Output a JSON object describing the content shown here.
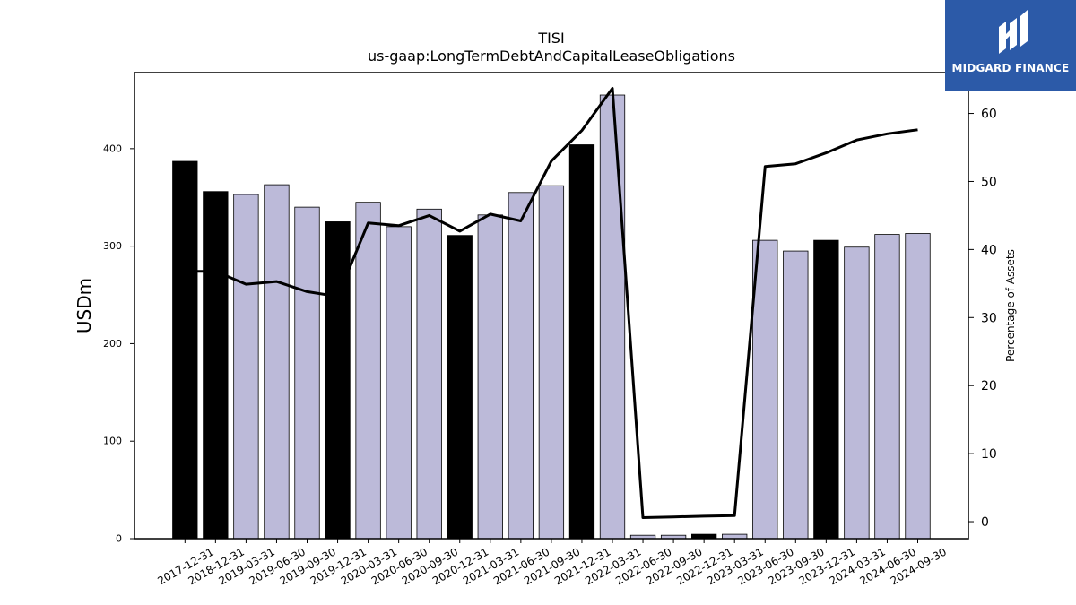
{
  "logo": {
    "text": "MIDGARD FINANCE",
    "background": "#2c5aa8"
  },
  "chart_data": {
    "type": "bar",
    "title": "TISI",
    "subtitle": "us-gaap:LongTermDebtAndCapitalLeaseObligations",
    "ylabel": "USDm",
    "y2label": "Percentage of Assets",
    "ylim": [
      0,
      478
    ],
    "y2lim": [
      -2.5,
      66
    ],
    "yticks": [
      0,
      100,
      200,
      300,
      400
    ],
    "y2ticks": [
      0,
      10,
      20,
      30,
      40,
      50,
      60
    ],
    "grid": false,
    "categories": [
      "2017-12-31",
      "2018-12-31",
      "2019-03-31",
      "2019-06-30",
      "2019-09-30",
      "2019-12-31",
      "2020-03-31",
      "2020-06-30",
      "2020-09-30",
      "2020-12-31",
      "2021-03-31",
      "2021-06-30",
      "2021-09-30",
      "2021-12-31",
      "2022-03-31",
      "2022-06-30",
      "2022-09-30",
      "2022-12-31",
      "2023-03-31",
      "2023-06-30",
      "2023-09-30",
      "2023-12-31",
      "2024-03-31",
      "2024-06-30",
      "2024-09-30"
    ],
    "bar_series": {
      "values": [
        387,
        356,
        353,
        363,
        340,
        325,
        345,
        320,
        338,
        311,
        332,
        355,
        362,
        404,
        455,
        3.5,
        3.5,
        4.5,
        4.5,
        306,
        295,
        306,
        299,
        312,
        313
      ],
      "annual_flags": [
        true,
        true,
        false,
        false,
        false,
        true,
        false,
        false,
        false,
        true,
        false,
        false,
        false,
        true,
        false,
        false,
        false,
        true,
        false,
        false,
        false,
        true,
        false,
        false,
        false
      ],
      "annual_color": "#000000",
      "quarterly_color": "#bcbad9"
    },
    "line_series": {
      "axis": "secondary",
      "color": "#000000",
      "values": [
        36.8,
        36.8,
        34.9,
        35.3,
        33.8,
        33.1,
        43.9,
        43.5,
        45.0,
        42.7,
        45.2,
        44.2,
        53.0,
        57.5,
        63.7,
        0.6,
        0.7,
        0.8,
        0.9,
        52.2,
        52.6,
        54.2,
        56.1,
        57.0,
        57.6
      ]
    }
  }
}
